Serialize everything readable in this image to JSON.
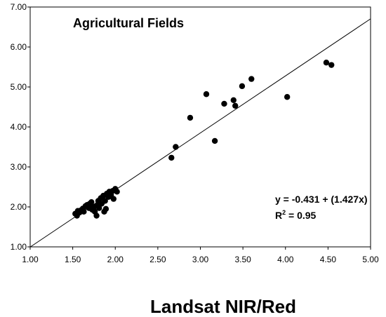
{
  "chart_data": {
    "type": "scatter",
    "title": "Agricultural Fields",
    "xlabel": "Landsat NIR/Red",
    "ylabel": "",
    "xlim": [
      1.0,
      5.0
    ],
    "ylim": [
      1.0,
      7.0
    ],
    "xticks": [
      "1.00",
      "1.50",
      "2.00",
      "2.50",
      "3.00",
      "3.50",
      "4.00",
      "4.50",
      "5.00"
    ],
    "yticks": [
      "1.00",
      "2.00",
      "3.00",
      "4.00",
      "5.00",
      "6.00",
      "7.00"
    ],
    "grid": false,
    "marker_color": "#000000",
    "series": [
      {
        "points": [
          [
            1.53,
            1.83
          ],
          [
            1.55,
            1.78
          ],
          [
            1.56,
            1.9
          ],
          [
            1.58,
            1.86
          ],
          [
            1.6,
            1.92
          ],
          [
            1.62,
            1.96
          ],
          [
            1.63,
            1.88
          ],
          [
            1.65,
            2.02
          ],
          [
            1.67,
            2.05
          ],
          [
            1.69,
            1.97
          ],
          [
            1.7,
            2.08
          ],
          [
            1.72,
            2.12
          ],
          [
            1.73,
            1.93
          ],
          [
            1.75,
            2.0
          ],
          [
            1.76,
            1.88
          ],
          [
            1.78,
            1.78
          ],
          [
            1.79,
            2.03
          ],
          [
            1.8,
            2.15
          ],
          [
            1.81,
            1.97
          ],
          [
            1.83,
            2.22
          ],
          [
            1.84,
            2.08
          ],
          [
            1.86,
            2.28
          ],
          [
            1.87,
            1.88
          ],
          [
            1.88,
            2.15
          ],
          [
            1.89,
            1.95
          ],
          [
            1.9,
            2.33
          ],
          [
            1.92,
            2.25
          ],
          [
            1.93,
            2.38
          ],
          [
            1.95,
            2.3
          ],
          [
            1.97,
            2.4
          ],
          [
            1.98,
            2.2
          ],
          [
            2.0,
            2.45
          ],
          [
            2.02,
            2.38
          ],
          [
            2.66,
            3.23
          ],
          [
            2.71,
            3.5
          ],
          [
            2.88,
            4.23
          ],
          [
            3.07,
            4.82
          ],
          [
            3.17,
            3.65
          ],
          [
            3.28,
            4.58
          ],
          [
            3.39,
            4.67
          ],
          [
            3.41,
            4.53
          ],
          [
            3.49,
            5.02
          ],
          [
            3.6,
            5.2
          ],
          [
            4.02,
            4.75
          ],
          [
            4.48,
            5.61
          ],
          [
            4.54,
            5.55
          ]
        ]
      }
    ],
    "regression": {
      "intercept": -0.431,
      "slope": 1.427
    },
    "equation_text": "y = -0.431 + (1.427x)",
    "r2_text": "R",
    "r2_sup": "2",
    "r2_value_text": " = 0.95"
  }
}
